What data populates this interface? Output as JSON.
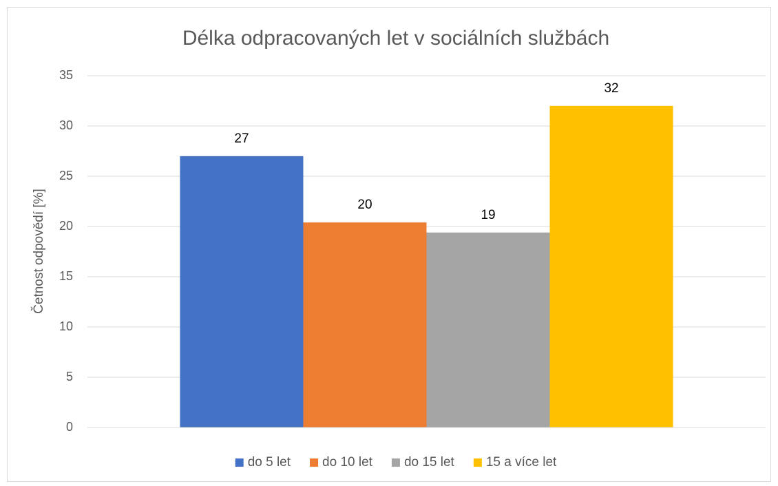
{
  "chart_data": {
    "type": "bar",
    "title": "Délka odpracovaných let v sociálních službách",
    "y_label": "Četnost odpovědí [%]",
    "categories": [
      null
    ],
    "series": [
      {
        "name": "do 5 let",
        "color": "#4472c4",
        "values": [
          27
        ],
        "value_labels": [
          "27"
        ]
      },
      {
        "name": "do 10 let",
        "color": "#ed7d31",
        "values": [
          20.4
        ],
        "value_labels": [
          "20"
        ]
      },
      {
        "name": "do 15 let",
        "color": "#a5a5a5",
        "values": [
          19.4
        ],
        "value_labels": [
          "19"
        ]
      },
      {
        "name": "15 a více let",
        "color": "#ffc000",
        "values": [
          32
        ],
        "value_labels": [
          "32"
        ]
      }
    ],
    "ylim": [
      0,
      35
    ],
    "yticks": [
      0,
      5,
      10,
      15,
      20,
      25,
      30,
      35
    ],
    "grid": true,
    "legend": "bottom"
  }
}
